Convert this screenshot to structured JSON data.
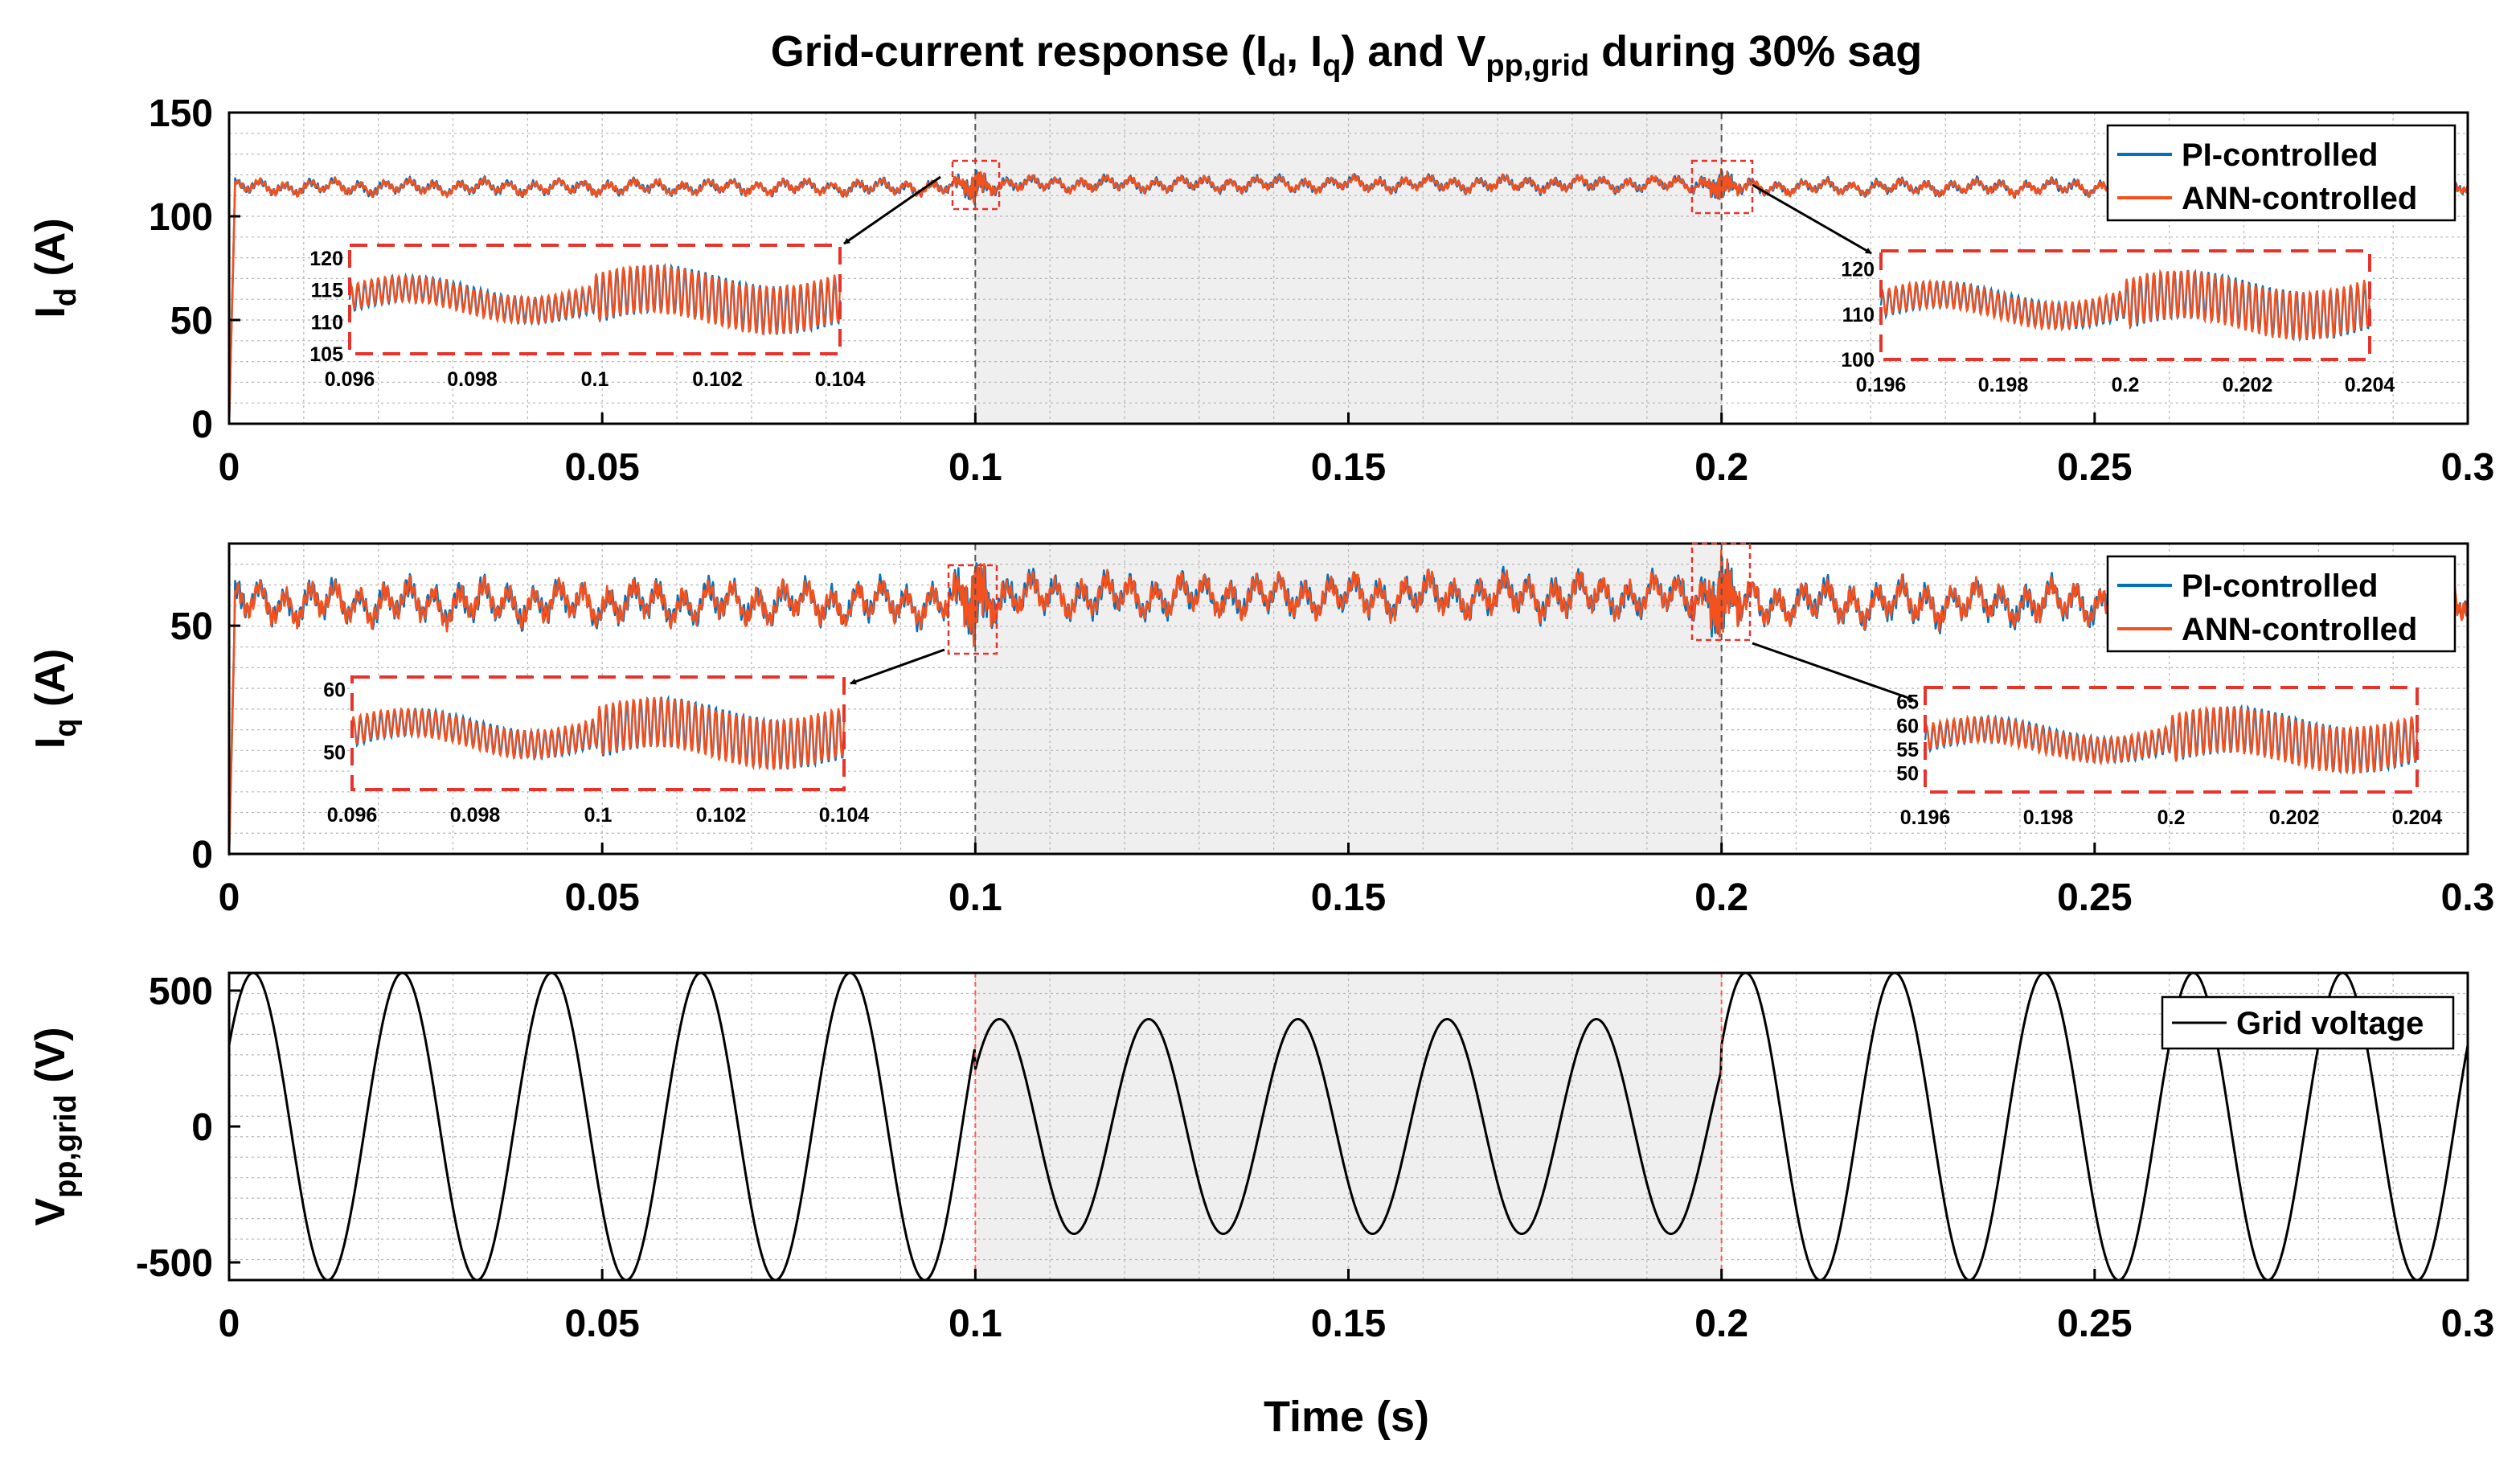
{
  "figure": {
    "title_main": "Grid-current response (I",
    "title_sub_d": "d",
    "title_sep": ", I",
    "title_sub_q": "q",
    "title_mid": ") and V",
    "title_sub_v": "pp,grid",
    "title_tail": " during 30% sag",
    "xlabel": "Time (s)"
  },
  "colors": {
    "pi": "#0072BD",
    "ann": "#F4511E",
    "grid_voltage": "#000000",
    "sag_shade": "#EFEFEF",
    "zoom_box": "#E8332A"
  },
  "chart_data": [
    {
      "type": "line",
      "id": "id",
      "ylabel_main": "I",
      "ylabel_sub": "d",
      "ylabel_tail": " (A)",
      "xlim": [
        0,
        0.3
      ],
      "ylim": [
        0,
        150
      ],
      "xticks": [
        0,
        0.05,
        0.1,
        0.15,
        0.2,
        0.25,
        0.3
      ],
      "xtick_labels": [
        "0",
        "0.05",
        "0.1",
        "0.15",
        "0.2",
        "0.25",
        "0.3"
      ],
      "yticks": [
        0,
        50,
        100,
        150
      ],
      "ytick_labels": [
        "0",
        "50",
        "100",
        "150"
      ],
      "sag_window": [
        0.1,
        0.2
      ],
      "steady_value": 114,
      "ripple_amplitude": 4,
      "legend": [
        "PI-controlled",
        "ANN-controlled"
      ],
      "legend_position": "top-right",
      "insets": [
        {
          "xlim": [
            0.096,
            0.104
          ],
          "ylim": [
            105,
            122
          ],
          "xtick_labels": [
            "0.096",
            "0.098",
            "0.1",
            "0.102",
            "0.104"
          ],
          "yticks": [
            105,
            110,
            115,
            120
          ],
          "ytick_labels": [
            "105",
            "110",
            "115",
            "120"
          ]
        },
        {
          "xlim": [
            0.196,
            0.204
          ],
          "ylim": [
            100,
            124
          ],
          "xtick_labels": [
            "0.196",
            "0.198",
            "0.2",
            "0.202",
            "0.204"
          ],
          "yticks": [
            100,
            110,
            120
          ],
          "ytick_labels": [
            "100",
            "110",
            "120"
          ]
        }
      ]
    },
    {
      "type": "line",
      "id": "iq",
      "ylabel_main": "I",
      "ylabel_sub": "q",
      "ylabel_tail": " (A)",
      "xlim": [
        0,
        0.3
      ],
      "ylim": [
        0,
        68
      ],
      "xticks": [
        0,
        0.05,
        0.1,
        0.15,
        0.2,
        0.25,
        0.3
      ],
      "xtick_labels": [
        "0",
        "0.05",
        "0.1",
        "0.15",
        "0.2",
        "0.25",
        "0.3"
      ],
      "yticks": [
        0,
        50
      ],
      "ytick_labels": [
        "0",
        "50"
      ],
      "sag_window": [
        0.1,
        0.2
      ],
      "steady_value": 55,
      "ripple_amplitude": 5,
      "legend": [
        "PI-controlled",
        "ANN-controlled"
      ],
      "legend_position": "top-right",
      "insets": [
        {
          "xlim": [
            0.096,
            0.104
          ],
          "ylim": [
            44,
            62
          ],
          "xtick_labels": [
            "0.096",
            "0.098",
            "0.1",
            "0.102",
            "0.104"
          ],
          "yticks": [
            50,
            60
          ],
          "ytick_labels": [
            "50",
            "60"
          ]
        },
        {
          "xlim": [
            0.196,
            0.204
          ],
          "ylim": [
            46,
            68
          ],
          "xtick_labels": [
            "0.196",
            "0.198",
            "0.2",
            "0.202",
            "0.204"
          ],
          "yticks": [
            50,
            55,
            60,
            65
          ],
          "ytick_labels": [
            "50",
            "55",
            "60",
            "65"
          ]
        }
      ]
    },
    {
      "type": "line",
      "id": "vpp",
      "ylabel_main": "V",
      "ylabel_sub": "pp,grid",
      "ylabel_tail": " (V)",
      "xlim": [
        0,
        0.3
      ],
      "ylim": [
        -565,
        565
      ],
      "xticks": [
        0,
        0.05,
        0.1,
        0.15,
        0.2,
        0.25,
        0.3
      ],
      "xtick_labels": [
        "0",
        "0.05",
        "0.1",
        "0.15",
        "0.2",
        "0.25",
        "0.3"
      ],
      "yticks": [
        -500,
        0,
        500
      ],
      "ytick_labels": [
        "-500",
        "0",
        "500"
      ],
      "sag_window": [
        0.1,
        0.2
      ],
      "amplitude_normal": 565,
      "amplitude_sag": 395,
      "frequency_hz": 50,
      "phase_deg": 32,
      "legend": [
        "Grid voltage"
      ],
      "legend_position": "top-right"
    }
  ]
}
